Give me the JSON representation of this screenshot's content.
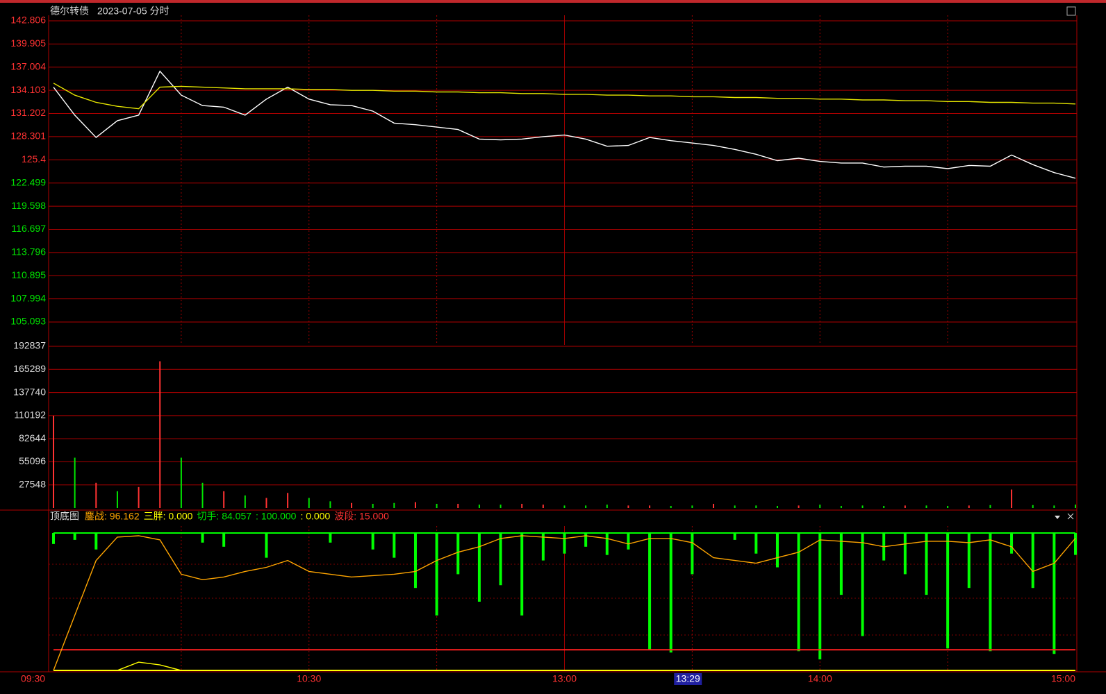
{
  "header": {
    "name": "德尔转债",
    "date": "2023-07-05 分时"
  },
  "chart_data": [
    {
      "type": "line",
      "name": "price",
      "x": [
        "09:30",
        "09:35",
        "09:40",
        "09:45",
        "09:50",
        "09:55",
        "10:00",
        "10:05",
        "10:10",
        "10:15",
        "10:20",
        "10:25",
        "10:30",
        "10:35",
        "10:40",
        "10:45",
        "10:50",
        "10:55",
        "11:00",
        "11:05",
        "11:10",
        "11:15",
        "11:20",
        "11:25",
        "11:30",
        "13:05",
        "13:10",
        "13:15",
        "13:20",
        "13:25",
        "13:30",
        "13:35",
        "13:40",
        "13:45",
        "13:50",
        "13:55",
        "14:00",
        "14:05",
        "14:10",
        "14:15",
        "14:20",
        "14:25",
        "14:30",
        "14:35",
        "14:40",
        "14:45",
        "14:50",
        "14:55",
        "15:00"
      ],
      "series": [
        {
          "color": "#ffffff",
          "values": [
            134.5,
            131.0,
            128.2,
            130.3,
            131.0,
            136.5,
            133.5,
            132.2,
            132.0,
            131.0,
            133.0,
            134.5,
            133.0,
            132.3,
            132.2,
            131.5,
            130.0,
            129.8,
            129.5,
            129.2,
            128.0,
            127.9,
            128.0,
            128.3,
            128.5,
            128.0,
            127.1,
            127.2,
            128.2,
            127.8,
            127.5,
            127.2,
            126.7,
            126.1,
            125.3,
            125.6,
            125.2,
            125.0,
            125.0,
            124.5,
            124.6,
            124.6,
            124.3,
            124.7,
            124.6,
            126.0,
            124.8,
            123.8,
            123.1
          ]
        },
        {
          "color": "#e6e600",
          "values": [
            135.0,
            133.5,
            132.6,
            132.1,
            131.8,
            134.5,
            134.6,
            134.5,
            134.4,
            134.3,
            134.3,
            134.3,
            134.2,
            134.2,
            134.1,
            134.1,
            134.0,
            134.0,
            133.9,
            133.9,
            133.8,
            133.8,
            133.7,
            133.7,
            133.6,
            133.6,
            133.5,
            133.5,
            133.4,
            133.4,
            133.3,
            133.3,
            133.2,
            133.2,
            133.1,
            133.1,
            133.0,
            133.0,
            132.9,
            132.9,
            132.8,
            132.8,
            132.7,
            132.7,
            132.6,
            132.6,
            132.5,
            132.5,
            132.4
          ]
        }
      ],
      "ylim": [
        105.093,
        142.806
      ],
      "yticks": [
        142.806,
        139.905,
        137.004,
        134.103,
        131.202,
        128.301,
        125.4,
        {
          "value": 122.499,
          "label": "122.499"
        },
        119.598,
        116.697,
        113.796,
        110.895,
        107.994,
        105.093
      ],
      "grid": true
    },
    {
      "type": "bar",
      "name": "volume",
      "x": [
        "09:30",
        "09:35",
        "09:40",
        "09:45",
        "09:50",
        "09:55",
        "10:00",
        "10:05",
        "10:10",
        "10:15",
        "10:20",
        "10:25",
        "10:30",
        "10:35",
        "10:40",
        "10:45",
        "10:50",
        "10:55",
        "11:00",
        "11:05",
        "11:10",
        "11:15",
        "11:20",
        "11:25",
        "11:30",
        "13:05",
        "13:10",
        "13:15",
        "13:20",
        "13:25",
        "13:30",
        "13:35",
        "13:40",
        "13:45",
        "13:50",
        "13:55",
        "14:00",
        "14:05",
        "14:10",
        "14:15",
        "14:20",
        "14:25",
        "14:30",
        "14:35",
        "14:40",
        "14:45",
        "14:50",
        "14:55",
        "15:00"
      ],
      "values": [
        110000,
        60000,
        30000,
        20000,
        25000,
        175000,
        60000,
        30000,
        20000,
        15000,
        12000,
        18000,
        12000,
        8000,
        6000,
        5000,
        6000,
        7000,
        5000,
        5000,
        4000,
        4000,
        5000,
        4000,
        3000,
        3000,
        4000,
        3000,
        3000,
        2500,
        3000,
        5000,
        3000,
        3000,
        2500,
        3000,
        4000,
        2500,
        3000,
        2500,
        3000,
        3000,
        2500,
        3000,
        3500,
        22000,
        3500,
        3000,
        4000
      ],
      "colors": [
        "#ff3232",
        "#00e600",
        "#ff3232",
        "#00e600",
        "#ff3232",
        "#ff3232",
        "#00e600",
        "#00e600",
        "#ff3232",
        "#00e600",
        "#ff3232",
        "#ff3232",
        "#00e600",
        "#00e600",
        "#ff3232",
        "#00e600",
        "#00e600",
        "#ff3232",
        "#00e600",
        "#ff3232",
        "#00e600",
        "#00e600",
        "#ff3232",
        "#ff3232",
        "#00e600",
        "#00e600",
        "#00e600",
        "#ff3232",
        "#ff3232",
        "#00e600",
        "#00e600",
        "#ff3232",
        "#00e600",
        "#00e600",
        "#00e600",
        "#ff3232",
        "#00e600",
        "#00e600",
        "#00e600",
        "#00e600",
        "#ff3232",
        "#00e600",
        "#00e600",
        "#ff3232",
        "#00e600",
        "#ff3232",
        "#00e600",
        "#00e600",
        "#00e600"
      ],
      "ylim": [
        0,
        192837
      ],
      "yticks": [
        192837,
        165289,
        137740,
        110192,
        82644,
        55096,
        27548
      ],
      "grid": true
    },
    {
      "type": "indicator",
      "name": "顶底图",
      "legend": [
        {
          "text": "鏖战: 96.162",
          "color": "#ffa500"
        },
        {
          "text": "三胖: 0.000",
          "color": "#ffff00"
        },
        {
          "text": "切手: 84.057",
          "color": "#00e600"
        },
        {
          "text": ": 100.000",
          "color": "#00e600"
        },
        {
          "text": ": 0.000",
          "color": "#ffff00"
        },
        {
          "text": "波段: 15.000",
          "color": "#ff3232"
        }
      ],
      "x": [
        "09:30",
        "09:35",
        "09:40",
        "09:45",
        "09:50",
        "09:55",
        "10:00",
        "10:05",
        "10:10",
        "10:15",
        "10:20",
        "10:25",
        "10:30",
        "10:35",
        "10:40",
        "10:45",
        "10:50",
        "10:55",
        "11:00",
        "11:05",
        "11:10",
        "11:15",
        "11:20",
        "11:25",
        "11:30",
        "13:05",
        "13:10",
        "13:15",
        "13:20",
        "13:25",
        "13:30",
        "13:35",
        "13:40",
        "13:45",
        "13:50",
        "13:55",
        "14:00",
        "14:05",
        "14:10",
        "14:15",
        "14:20",
        "14:25",
        "14:30",
        "14:35",
        "14:40",
        "14:45",
        "14:50",
        "14:55",
        "15:00"
      ],
      "bars": {
        "color": "#00ff00",
        "values": [
          92,
          95,
          88,
          100,
          100,
          100,
          100,
          93,
          90,
          100,
          82,
          100,
          100,
          93,
          100,
          88,
          82,
          60,
          40,
          70,
          50,
          62,
          40,
          80,
          85,
          90,
          84,
          88,
          15,
          13,
          70,
          100,
          95,
          85,
          75,
          14,
          8,
          55,
          25,
          80,
          70,
          55,
          16,
          60,
          14,
          85,
          60,
          12,
          84.057
        ]
      },
      "series": [
        {
          "color": "#ffa500",
          "values": [
            0,
            40,
            80,
            97,
            98,
            95,
            70,
            66,
            68,
            72,
            75,
            80,
            72,
            70,
            68,
            69,
            70,
            72,
            80,
            86,
            90,
            96,
            98,
            97,
            96,
            98,
            96,
            92,
            96,
            96,
            93,
            82,
            80,
            78,
            82,
            86,
            95,
            94,
            93,
            90,
            92,
            94,
            94,
            93,
            95,
            90,
            72,
            78,
            96.162
          ]
        },
        {
          "color": "#ffff00",
          "values": [
            0,
            0,
            0,
            0,
            6,
            4,
            0,
            0,
            0,
            0,
            0,
            0,
            0,
            0,
            0,
            0,
            0,
            0,
            0,
            0,
            0,
            0,
            0,
            0,
            0,
            0,
            0,
            0,
            0,
            0,
            0,
            0,
            0,
            0,
            0,
            0,
            0,
            0,
            0,
            0,
            0,
            0,
            0,
            0,
            0,
            0,
            0,
            0,
            0
          ]
        }
      ],
      "hlines": [
        {
          "value": 100,
          "color": "#00ff00"
        },
        {
          "value": 15,
          "color": "#ff2020"
        },
        {
          "value": 0,
          "color": "#ffff00"
        }
      ],
      "ylim": [
        0,
        100
      ],
      "xticks": [
        "09:30",
        "10:30",
        "13:00",
        "14:00",
        "15:00"
      ],
      "cursor": "13:29"
    }
  ]
}
